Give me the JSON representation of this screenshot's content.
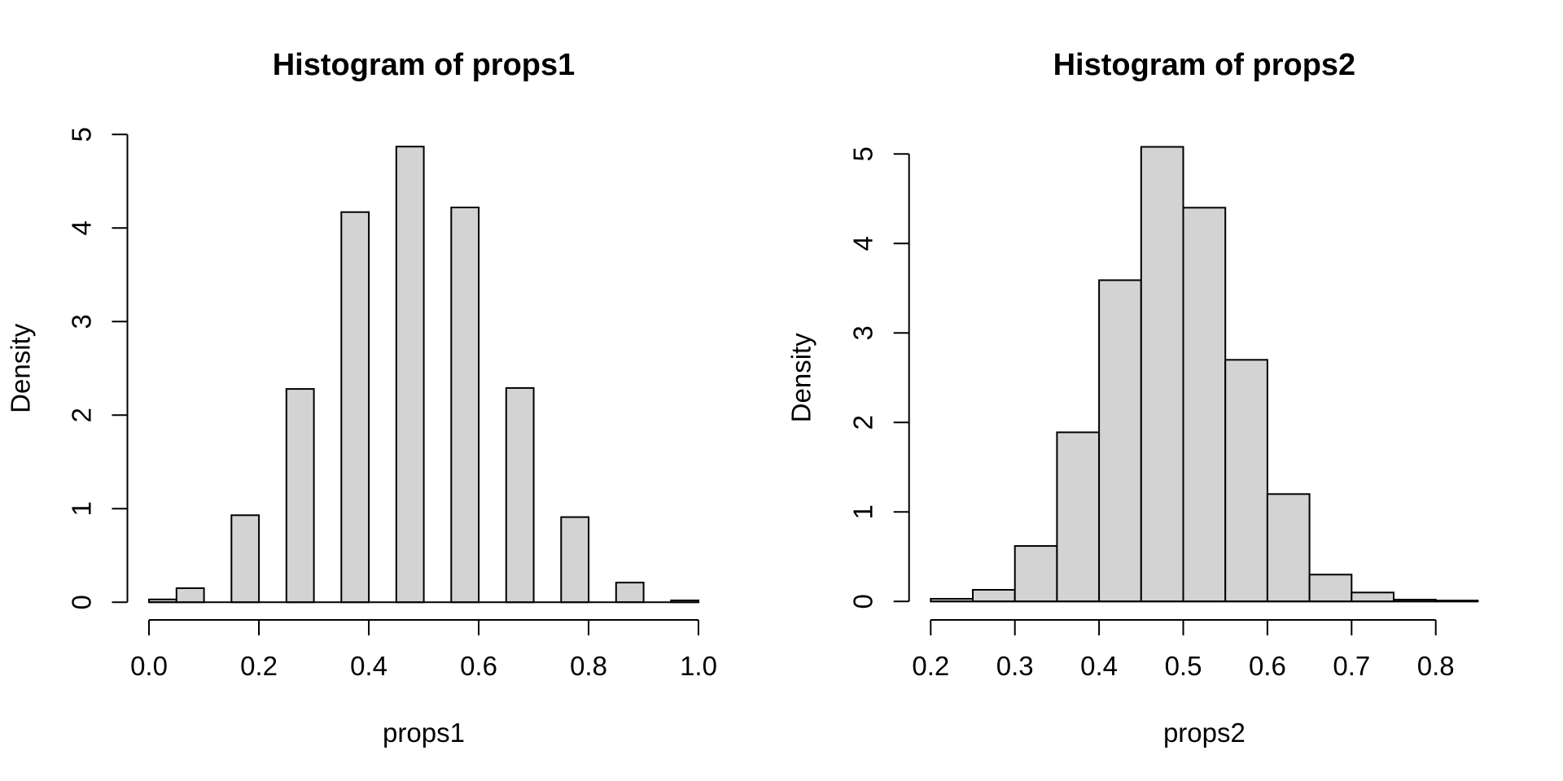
{
  "page": {
    "background": "#ffffff"
  },
  "chart_data": [
    {
      "type": "bar",
      "subtype": "histogram",
      "title": "Histogram of props1",
      "xlabel": "props1",
      "ylabel": "Density",
      "bin_start": 0.0,
      "bin_width": 0.05,
      "densities": [
        0.03,
        0.15,
        0,
        0.93,
        0,
        2.28,
        0,
        4.17,
        0,
        4.87,
        0,
        4.22,
        0,
        2.29,
        0,
        0.91,
        0,
        0.21,
        0,
        0.02
      ],
      "x_ticks": [
        {
          "v": 0.0,
          "label": "0.0"
        },
        {
          "v": 0.2,
          "label": "0.2"
        },
        {
          "v": 0.4,
          "label": "0.4"
        },
        {
          "v": 0.6,
          "label": "0.6"
        },
        {
          "v": 0.8,
          "label": "0.8"
        },
        {
          "v": 1.0,
          "label": "1.0"
        }
      ],
      "y_ticks": [
        {
          "v": 0,
          "label": "0"
        },
        {
          "v": 1,
          "label": "1"
        },
        {
          "v": 2,
          "label": "2"
        },
        {
          "v": 3,
          "label": "3"
        },
        {
          "v": 4,
          "label": "4"
        },
        {
          "v": 5,
          "label": "5"
        }
      ],
      "xlim": [
        0.0,
        1.0
      ],
      "ylim": [
        0,
        5
      ],
      "grid": "off",
      "legend": "none",
      "bar_fill": "#d3d3d3",
      "bar_border": "#000000",
      "axis_color": "#000000"
    },
    {
      "type": "bar",
      "subtype": "histogram",
      "title": "Histogram of props2",
      "xlabel": "props2",
      "ylabel": "Density",
      "bin_start": 0.2,
      "bin_width": 0.05,
      "densities": [
        0.03,
        0.13,
        0.62,
        1.89,
        3.59,
        5.08,
        4.4,
        2.7,
        1.2,
        0.3,
        0.1,
        0.02,
        0.01
      ],
      "x_ticks": [
        {
          "v": 0.2,
          "label": "0.2"
        },
        {
          "v": 0.3,
          "label": "0.3"
        },
        {
          "v": 0.4,
          "label": "0.4"
        },
        {
          "v": 0.5,
          "label": "0.5"
        },
        {
          "v": 0.6,
          "label": "0.6"
        },
        {
          "v": 0.7,
          "label": "0.7"
        },
        {
          "v": 0.8,
          "label": "0.8"
        }
      ],
      "y_ticks": [
        {
          "v": 0,
          "label": "0"
        },
        {
          "v": 1,
          "label": "1"
        },
        {
          "v": 2,
          "label": "2"
        },
        {
          "v": 3,
          "label": "3"
        },
        {
          "v": 4,
          "label": "4"
        },
        {
          "v": 5,
          "label": "5"
        }
      ],
      "xlim": [
        0.2,
        0.85
      ],
      "ylim": [
        0,
        5
      ],
      "grid": "off",
      "legend": "none",
      "bar_fill": "#d3d3d3",
      "bar_border": "#000000",
      "axis_color": "#000000"
    }
  ]
}
